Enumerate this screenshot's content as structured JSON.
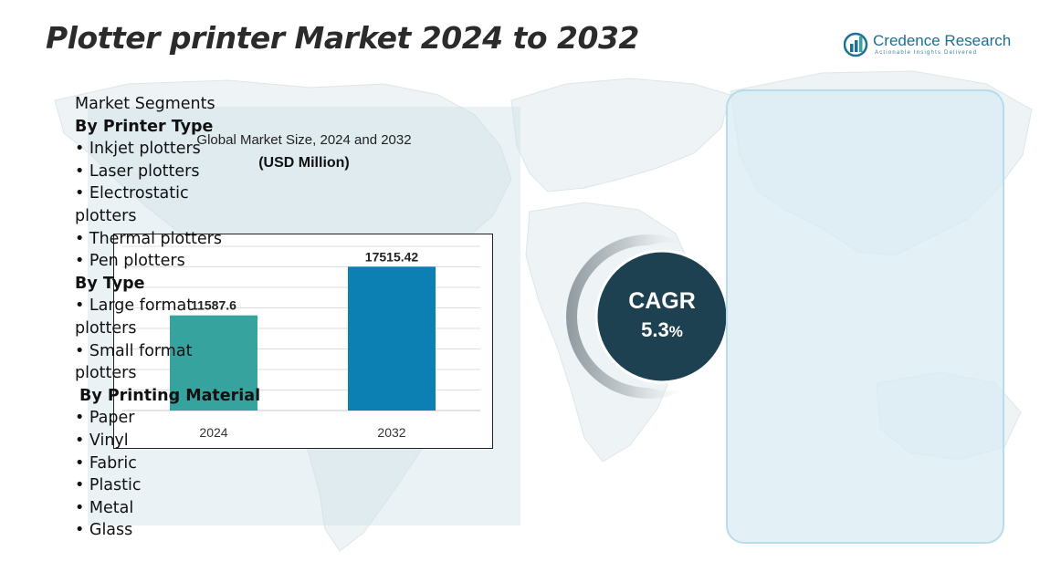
{
  "page": {
    "title": "Plotter printer Market 2024 to 2032"
  },
  "brand": {
    "name": "Credence Research",
    "tagline": "Actionable Insights Delivered",
    "logo_icon": "bar-chart-logo-icon"
  },
  "colors": {
    "bar_2024": "#36a39f",
    "bar_2032": "#0c7fb3",
    "cagr_circle": "#1d4150",
    "panel_border": "#b7dcea",
    "brand": "#1e6f91"
  },
  "chart_data": {
    "type": "bar",
    "title": "Global Market Size, 2024 and 2032",
    "unit": "(USD Million)",
    "categories": [
      "2024",
      "2032"
    ],
    "values": [
      11587.6,
      17515.42
    ],
    "value_labels": [
      "11587.6",
      "17515.42"
    ],
    "ylim": [
      0,
      20000
    ],
    "grid": true,
    "legend": "none"
  },
  "cagr": {
    "label": "CAGR",
    "value": "5.3",
    "unit": "%"
  },
  "segments": {
    "items": [
      {
        "text": "Market Segments",
        "kind": "plain"
      },
      {
        "text": "By Printer Type",
        "kind": "heading"
      },
      {
        "text": "•  Inkjet plotters",
        "kind": "plain"
      },
      {
        "text": "•  Laser plotters",
        "kind": "plain"
      },
      {
        "text": "•  Electrostatic",
        "kind": "plain"
      },
      {
        "text": "plotters",
        "kind": "plain"
      },
      {
        "text": "•  Thermal plotters",
        "kind": "plain"
      },
      {
        "text": "•  Pen plotters",
        "kind": "plain"
      },
      {
        "text": "By Type",
        "kind": "heading"
      },
      {
        "text": "•  Large format",
        "kind": "plain"
      },
      {
        "text": "plotters",
        "kind": "plain"
      },
      {
        "text": "•  Small format",
        "kind": "plain"
      },
      {
        "text": "plotters",
        "kind": "plain"
      },
      {
        "text": "By Printing Material",
        "kind": "heading-indent"
      },
      {
        "text": "•  Paper",
        "kind": "plain"
      },
      {
        "text": "• Vinyl",
        "kind": "plain"
      },
      {
        "text": "•  Fabric",
        "kind": "plain"
      },
      {
        "text": "• Plastic",
        "kind": "plain"
      },
      {
        "text": "•  Metal",
        "kind": "plain"
      },
      {
        "text": "•  Glass",
        "kind": "plain"
      }
    ]
  }
}
